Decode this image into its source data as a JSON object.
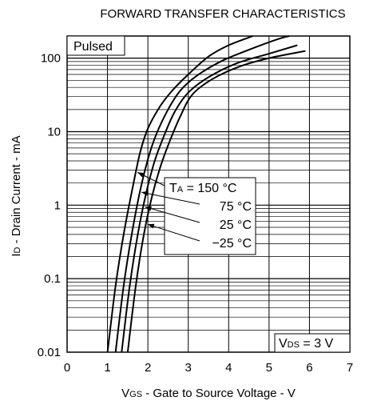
{
  "chart_data": {
    "type": "line",
    "title": "FORWARD TRANSFER CHARACTERISTICS",
    "xlabel": "VGS - Gate to Source Voltage - V",
    "ylabel": "ID - Drain Current - mA",
    "xlim": [
      0,
      7
    ],
    "ylim": [
      0.01,
      200
    ],
    "yscale": "log",
    "grid": true,
    "x_ticks": [
      "0",
      "1",
      "2",
      "3",
      "4",
      "5",
      "6",
      "7"
    ],
    "y_ticks": [
      "0.01",
      "0.1",
      "1",
      "10",
      "100"
    ],
    "annotations": {
      "pulsed": "Pulsed",
      "vds": "VDS = 3 V",
      "ta_prefix": "TA = ",
      "series_labels": [
        "150 °C",
        "75 °C",
        "25 °C",
        "−25 °C"
      ]
    },
    "series": [
      {
        "name": "150 °C",
        "x": [
          1.0,
          1.2,
          1.4,
          1.6,
          1.8,
          2.0,
          2.3,
          2.6,
          3.0,
          3.5,
          4.0,
          4.6
        ],
        "y": [
          0.01,
          0.08,
          0.4,
          1.5,
          5.0,
          11,
          22,
          36,
          60,
          105,
          150,
          200
        ]
      },
      {
        "name": "75 °C",
        "x": [
          1.2,
          1.4,
          1.6,
          1.8,
          2.0,
          2.2,
          2.5,
          2.8,
          3.2,
          3.8,
          4.5,
          5.2,
          5.5
        ],
        "y": [
          0.01,
          0.08,
          0.4,
          1.5,
          4.2,
          9.0,
          20,
          36,
          57,
          90,
          130,
          180,
          200
        ]
      },
      {
        "name": "25 °C",
        "x": [
          1.35,
          1.55,
          1.75,
          1.95,
          2.15,
          2.35,
          2.65,
          3.0,
          3.5,
          4.2,
          5.0,
          5.7
        ],
        "y": [
          0.01,
          0.08,
          0.4,
          1.4,
          3.7,
          7.5,
          18,
          34,
          55,
          85,
          115,
          150
        ]
      },
      {
        "name": "−25 °C",
        "x": [
          1.5,
          1.7,
          1.9,
          2.1,
          2.3,
          2.5,
          2.8,
          3.1,
          3.6,
          4.3,
          5.0,
          5.9
        ],
        "y": [
          0.01,
          0.08,
          0.4,
          1.3,
          3.2,
          6.5,
          16,
          32,
          52,
          78,
          100,
          125
        ]
      }
    ]
  }
}
